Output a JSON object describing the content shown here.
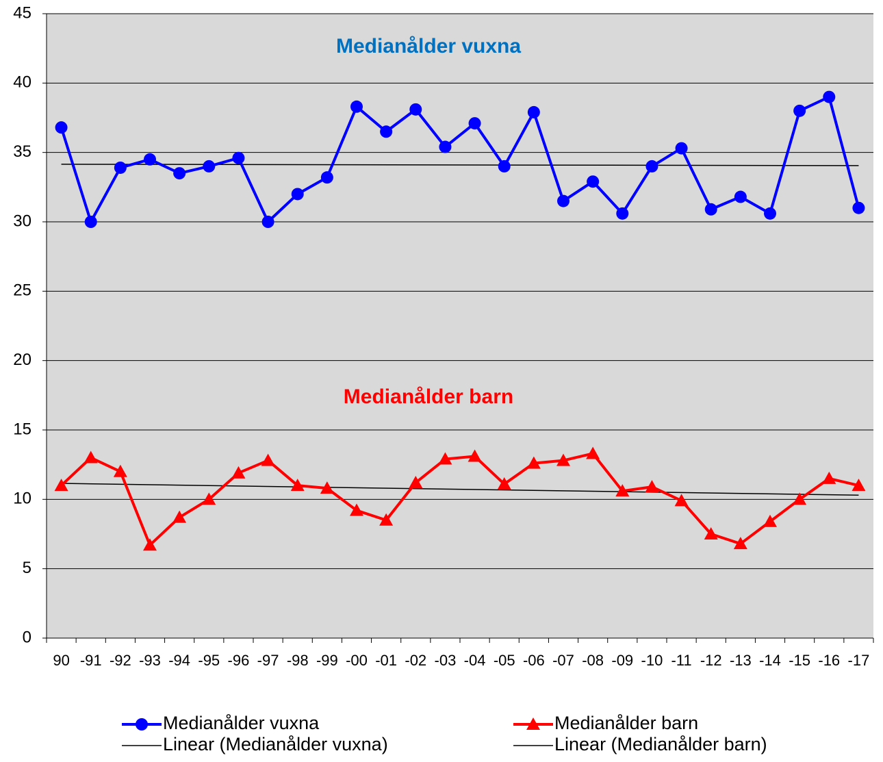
{
  "chart_data": {
    "type": "line",
    "categories": [
      "90",
      "-91",
      "-92",
      "-93",
      "-94",
      "-95",
      "-96",
      "-97",
      "-98",
      "-99",
      "-00",
      "-01",
      "-02",
      "-03",
      "-04",
      "-05",
      "-06",
      "-07",
      "-08",
      "-09",
      "-10",
      "-11",
      "-12",
      "-13",
      "-14",
      "-15",
      "-16",
      "-17"
    ],
    "series": [
      {
        "name": "Medianålder vuxna",
        "color": "#0000ff",
        "marker": "circle",
        "values": [
          36.8,
          30,
          33.9,
          34.5,
          33.5,
          34,
          34.6,
          30,
          32,
          33.2,
          38.3,
          36.5,
          38.1,
          35.4,
          37.1,
          34,
          37.9,
          31.5,
          32.9,
          30.6,
          34,
          35.3,
          30.9,
          31.8,
          30.6,
          38,
          39,
          31
        ]
      },
      {
        "name": "Medianålder barn",
        "color": "#ff0000",
        "marker": "triangle",
        "values": [
          11,
          13,
          12,
          6.7,
          8.7,
          10,
          11.9,
          12.8,
          11,
          10.8,
          9.2,
          8.5,
          11.2,
          12.9,
          13.1,
          11.1,
          12.6,
          12.8,
          13.3,
          10.6,
          10.9,
          9.9,
          7.5,
          6.8,
          8.4,
          10,
          11.5,
          11
        ]
      }
    ],
    "trendlines": [
      {
        "name": "Linear (Medianålder vuxna)",
        "color": "#000000",
        "categories": [
          "90",
          "-17"
        ],
        "values": [
          34.15,
          34.05
        ]
      },
      {
        "name": "Linear (Medianålder barn)",
        "color": "#000000",
        "categories": [
          "90",
          "-17"
        ],
        "values": [
          11.15,
          10.3
        ]
      }
    ],
    "annotations": [
      {
        "text": "Medianålder vuxna",
        "color": "#0070c0"
      },
      {
        "text": "Medianålder barn",
        "color": "#ff0000"
      }
    ],
    "ylim": [
      0,
      45
    ],
    "yticks": [
      0,
      5,
      10,
      15,
      20,
      25,
      30,
      35,
      40,
      45
    ],
    "grid": true,
    "legend": "bottom"
  }
}
